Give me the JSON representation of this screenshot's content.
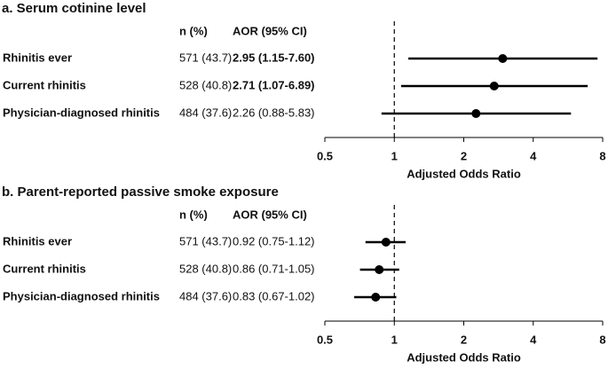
{
  "chart_data": [
    {
      "type": "forest",
      "title": "a. Serum cotinine level",
      "columns": [
        "n (%)",
        "AOR (95% CI)"
      ],
      "categories": [
        "Rhinitis ever",
        "Current rhinitis",
        "Physician-diagnosed rhinitis"
      ],
      "n_labels": [
        "571 (43.7)",
        "528 (40.8)",
        "484 (37.6)"
      ],
      "values": [
        2.95,
        2.71,
        2.26
      ],
      "ci_low": [
        1.15,
        1.07,
        0.88
      ],
      "ci_high": [
        7.6,
        6.89,
        5.83
      ],
      "value_labels": [
        "2.95 (1.15-7.60)",
        "2.71 (1.07-6.89)",
        "2.26 (0.88-5.83)"
      ],
      "bold": [
        true,
        true,
        false
      ],
      "xlabel": "Adjusted Odds Ratio",
      "xscale": "log",
      "xlim": [
        0.5,
        8
      ],
      "xticks": [
        0.5,
        1,
        2,
        4,
        8
      ],
      "reference_line": 1,
      "color": "#000000"
    },
    {
      "type": "forest",
      "title": "b.  Parent-reported passive smoke exposure",
      "columns": [
        "n (%)",
        "AOR (95% CI)"
      ],
      "categories": [
        "Rhinitis ever",
        "Current rhinitis",
        "Physician-diagnosed rhinitis"
      ],
      "n_labels": [
        "571 (43.7)",
        "528 (40.8)",
        "484 (37.6)"
      ],
      "values": [
        0.92,
        0.86,
        0.83
      ],
      "ci_low": [
        0.75,
        0.71,
        0.67
      ],
      "ci_high": [
        1.12,
        1.05,
        1.02
      ],
      "value_labels": [
        "0.92 (0.75-1.12)",
        "0.86 (0.71-1.05)",
        "0.83 (0.67-1.02)"
      ],
      "bold": [
        false,
        false,
        false
      ],
      "xlabel": "Adjusted Odds Ratio",
      "xscale": "log",
      "xlim": [
        0.5,
        8
      ],
      "xticks": [
        0.5,
        1,
        2,
        4,
        8
      ],
      "reference_line": 1,
      "color": "#000000"
    }
  ]
}
